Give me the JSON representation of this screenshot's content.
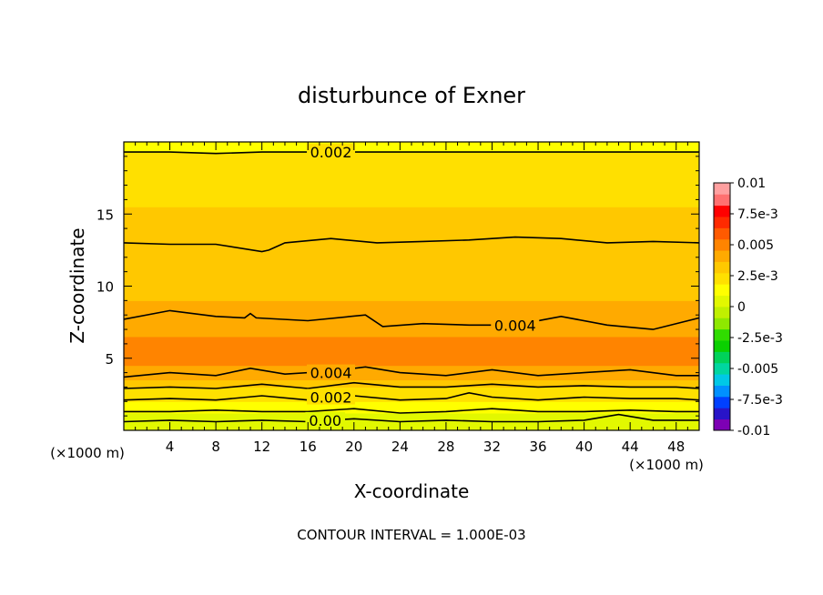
{
  "chart_data": {
    "type": "heatmap",
    "title": "disturbunce of Exner",
    "xlabel": "X-coordinate",
    "ylabel": "Z-coordinate",
    "x_unit": "(×1000 m)",
    "y_unit": "(×1000 m)",
    "xlim": [
      0,
      50
    ],
    "ylim": [
      0,
      20
    ],
    "x_ticks": [
      "4",
      "8",
      "12",
      "16",
      "20",
      "24",
      "28",
      "32",
      "36",
      "40",
      "44",
      "48"
    ],
    "y_ticks": [
      "5",
      "10",
      "15"
    ],
    "contour_interval_text": "CONTOUR INTERVAL = 1.000E-03",
    "contour_labels": [
      {
        "text": "0.002",
        "x": 18,
        "z": 19.3
      },
      {
        "text": "0.004",
        "x": 34,
        "z": 7.3
      },
      {
        "text": "0.004",
        "x": 18,
        "z": 4.0
      },
      {
        "text": "0.002",
        "x": 18,
        "z": 2.3
      },
      {
        "text": "0.00",
        "x": 17.5,
        "z": 0.7
      }
    ],
    "colorbar": {
      "labels": [
        "0.01",
        "7.5e-3",
        "0.005",
        "2.5e-3",
        "0",
        "-2.5e-3",
        "-0.005",
        "-7.5e-3",
        "-0.01"
      ],
      "range": [
        -0.01,
        0.01
      ],
      "colors": [
        "#7d00b4",
        "#2814c8",
        "#0040ff",
        "#0090ff",
        "#00c8e6",
        "#00d6a0",
        "#00d25a",
        "#0ad000",
        "#30dc00",
        "#8ee800",
        "#c0f000",
        "#e2f800",
        "#ffff00",
        "#ffe000",
        "#ffc800",
        "#ffaa00",
        "#ff8400",
        "#ff5a00",
        "#ff2a00",
        "#ff0000",
        "#ff7070",
        "#ffa0a0"
      ]
    },
    "field_profile": [
      {
        "z": 0,
        "value": 3e-05
      },
      {
        "z": 0.4,
        "value": 0.0002
      },
      {
        "z": 0.8,
        "value": 0.0007
      },
      {
        "z": 1.2,
        "value": 0.0011
      },
      {
        "z": 1.6,
        "value": 0.0014
      },
      {
        "z": 2.0,
        "value": 0.0019
      },
      {
        "z": 2.5,
        "value": 0.0024
      },
      {
        "z": 3.0,
        "value": 0.0029
      },
      {
        "z": 3.5,
        "value": 0.0034
      },
      {
        "z": 4.0,
        "value": 0.0039
      },
      {
        "z": 4.5,
        "value": 0.0044
      },
      {
        "z": 5.5,
        "value": 0.0049
      },
      {
        "z": 6.5,
        "value": 0.0047
      },
      {
        "z": 7.5,
        "value": 0.0041
      },
      {
        "z": 9.0,
        "value": 0.0036
      },
      {
        "z": 11.5,
        "value": 0.0033
      },
      {
        "z": 13.0,
        "value": 0.0029
      },
      {
        "z": 15.5,
        "value": 0.0026
      },
      {
        "z": 17.5,
        "value": 0.0024
      },
      {
        "z": 18.5,
        "value": 0.0021
      },
      {
        "z": 19.3,
        "value": 0.0019
      },
      {
        "z": 20.0,
        "value": 0.0017
      }
    ],
    "contours": [
      {
        "level": 0.0,
        "points": [
          [
            0,
            0.6
          ],
          [
            4,
            0.7
          ],
          [
            8,
            0.6
          ],
          [
            12,
            0.7
          ],
          [
            16,
            0.6
          ],
          [
            20,
            0.8
          ],
          [
            24,
            0.6
          ],
          [
            28,
            0.7
          ],
          [
            32,
            0.6
          ],
          [
            36,
            0.6
          ],
          [
            40,
            0.7
          ],
          [
            43,
            1.1
          ],
          [
            46,
            0.7
          ],
          [
            50,
            0.7
          ]
        ]
      },
      {
        "level": 0.001,
        "points": [
          [
            0,
            1.3
          ],
          [
            4,
            1.3
          ],
          [
            8,
            1.4
          ],
          [
            12,
            1.3
          ],
          [
            16,
            1.3
          ],
          [
            20,
            1.5
          ],
          [
            24,
            1.2
          ],
          [
            28,
            1.3
          ],
          [
            32,
            1.5
          ],
          [
            36,
            1.3
          ],
          [
            40,
            1.3
          ],
          [
            44,
            1.4
          ],
          [
            48,
            1.3
          ],
          [
            50,
            1.3
          ]
        ]
      },
      {
        "level": 0.002,
        "points": [
          [
            0,
            2.1
          ],
          [
            4,
            2.2
          ],
          [
            8,
            2.1
          ],
          [
            12,
            2.4
          ],
          [
            16,
            2.1
          ],
          [
            20,
            2.4
          ],
          [
            24,
            2.1
          ],
          [
            28,
            2.2
          ],
          [
            30,
            2.6
          ],
          [
            32,
            2.3
          ],
          [
            36,
            2.1
          ],
          [
            40,
            2.3
          ],
          [
            44,
            2.2
          ],
          [
            48,
            2.2
          ],
          [
            50,
            2.1
          ]
        ]
      },
      {
        "level": 0.003,
        "points": [
          [
            0,
            2.9
          ],
          [
            4,
            3.0
          ],
          [
            8,
            2.9
          ],
          [
            12,
            3.2
          ],
          [
            16,
            2.9
          ],
          [
            20,
            3.3
          ],
          [
            24,
            3.0
          ],
          [
            28,
            3.0
          ],
          [
            32,
            3.2
          ],
          [
            36,
            3.0
          ],
          [
            40,
            3.1
          ],
          [
            44,
            3.0
          ],
          [
            48,
            3.0
          ],
          [
            50,
            2.9
          ]
        ]
      },
      {
        "level": 0.004,
        "points": [
          [
            0,
            3.7
          ],
          [
            4,
            4.0
          ],
          [
            8,
            3.8
          ],
          [
            11,
            4.3
          ],
          [
            14,
            3.9
          ],
          [
            18,
            4.1
          ],
          [
            21,
            4.4
          ],
          [
            24,
            4.0
          ],
          [
            28,
            3.8
          ],
          [
            32,
            4.2
          ],
          [
            36,
            3.8
          ],
          [
            40,
            4.0
          ],
          [
            44,
            4.2
          ],
          [
            48,
            3.8
          ],
          [
            50,
            3.8
          ]
        ]
      },
      {
        "level": 0.004,
        "points": [
          [
            0,
            7.7
          ],
          [
            4,
            8.3
          ],
          [
            8,
            7.9
          ],
          [
            10.5,
            7.8
          ],
          [
            11,
            8.1
          ],
          [
            11.5,
            7.8
          ],
          [
            16,
            7.6
          ],
          [
            21,
            8.0
          ],
          [
            22.5,
            7.2
          ],
          [
            26,
            7.4
          ],
          [
            30,
            7.3
          ],
          [
            34,
            7.3
          ],
          [
            38,
            7.9
          ],
          [
            42,
            7.3
          ],
          [
            46,
            7.0
          ],
          [
            50,
            7.8
          ]
        ]
      },
      {
        "level": 0.003,
        "points": [
          [
            0,
            13.0
          ],
          [
            4,
            12.9
          ],
          [
            8,
            12.9
          ],
          [
            12,
            12.4
          ],
          [
            12.6,
            12.5
          ],
          [
            14,
            13.0
          ],
          [
            18,
            13.3
          ],
          [
            22,
            13.0
          ],
          [
            26,
            13.1
          ],
          [
            30,
            13.2
          ],
          [
            34,
            13.4
          ],
          [
            38,
            13.3
          ],
          [
            42,
            13.0
          ],
          [
            46,
            13.1
          ],
          [
            50,
            13.0
          ]
        ]
      },
      {
        "level": 0.002,
        "points": [
          [
            0,
            19.3
          ],
          [
            4,
            19.3
          ],
          [
            8,
            19.2
          ],
          [
            12,
            19.3
          ],
          [
            14.5,
            19.3
          ],
          [
            24,
            19.3
          ],
          [
            30,
            19.3
          ],
          [
            36,
            19.3
          ],
          [
            42,
            19.3
          ],
          [
            50,
            19.3
          ]
        ]
      }
    ]
  }
}
